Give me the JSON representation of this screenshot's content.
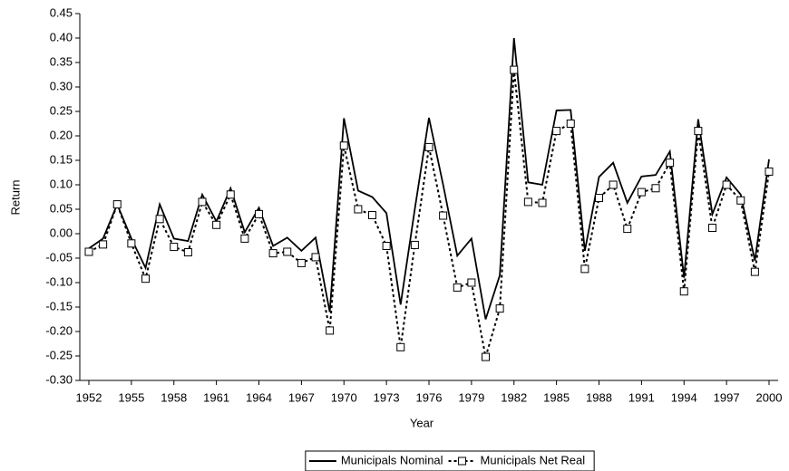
{
  "chart_data": {
    "type": "line",
    "x_label": "Year",
    "y_label": "Return",
    "x": [
      1952,
      1953,
      1954,
      1955,
      1956,
      1957,
      1958,
      1959,
      1960,
      1961,
      1962,
      1963,
      1964,
      1965,
      1966,
      1967,
      1968,
      1969,
      1970,
      1971,
      1972,
      1973,
      1974,
      1975,
      1976,
      1977,
      1978,
      1979,
      1980,
      1981,
      1982,
      1983,
      1984,
      1985,
      1986,
      1987,
      1988,
      1989,
      1990,
      1991,
      1992,
      1993,
      1994,
      1995,
      1996,
      1997,
      1998,
      1999,
      2000
    ],
    "series": [
      {
        "name": "Municipals Nominal",
        "color": "#000000",
        "dash": false,
        "marker": false,
        "values": [
          -0.03,
          -0.01,
          0.06,
          -0.01,
          -0.07,
          0.06,
          -0.01,
          -0.015,
          0.08,
          0.025,
          0.093,
          0.003,
          0.053,
          -0.025,
          -0.008,
          -0.035,
          -0.008,
          -0.16,
          0.236,
          0.088,
          0.075,
          0.042,
          -0.145,
          0.05,
          0.237,
          0.1,
          -0.045,
          -0.01,
          -0.175,
          -0.085,
          0.4,
          0.105,
          0.1,
          0.252,
          0.253,
          -0.035,
          0.116,
          0.145,
          0.063,
          0.117,
          0.12,
          0.168,
          -0.09,
          0.234,
          0.04,
          0.115,
          0.08,
          -0.055,
          0.152
        ]
      },
      {
        "name": "Municipals Net Real",
        "color": "#000000",
        "dash": true,
        "marker": true,
        "values": [
          -0.037,
          -0.022,
          0.06,
          -0.02,
          -0.092,
          0.03,
          -0.027,
          -0.038,
          0.065,
          0.018,
          0.08,
          -0.01,
          0.04,
          -0.04,
          -0.037,
          -0.06,
          -0.048,
          -0.198,
          0.18,
          0.05,
          0.038,
          -0.025,
          -0.232,
          -0.023,
          0.177,
          0.037,
          -0.11,
          -0.1,
          -0.252,
          -0.153,
          0.335,
          0.065,
          0.063,
          0.21,
          0.225,
          -0.072,
          0.073,
          0.1,
          0.01,
          0.085,
          0.093,
          0.145,
          -0.118,
          0.21,
          0.012,
          0.1,
          0.068,
          -0.078,
          0.127
        ]
      }
    ],
    "xlim": [
      1952,
      2000
    ],
    "xticks": [
      1952,
      1955,
      1958,
      1961,
      1964,
      1967,
      1970,
      1973,
      1976,
      1979,
      1982,
      1985,
      1988,
      1991,
      1994,
      1997,
      2000
    ],
    "ylim": [
      -0.3,
      0.45
    ],
    "yticks": [
      {
        "value": -0.3,
        "label": "-0.30"
      },
      -0.25,
      {
        "value": -0.2,
        "label": "-0.20"
      },
      -0.15,
      {
        "value": -0.1,
        "label": "-0.10"
      },
      -0.05,
      {
        "value": 0,
        "label": "0.00"
      },
      0.05,
      {
        "value": 0.1,
        "label": "0.10"
      },
      0.15,
      {
        "value": 0.2,
        "label": "0.20"
      },
      0.25,
      {
        "value": 0.3,
        "label": "0.30"
      },
      0.35,
      {
        "value": 0.4,
        "label": "0.40"
      },
      0.45
    ],
    "grid": false,
    "legend": "bottom"
  }
}
